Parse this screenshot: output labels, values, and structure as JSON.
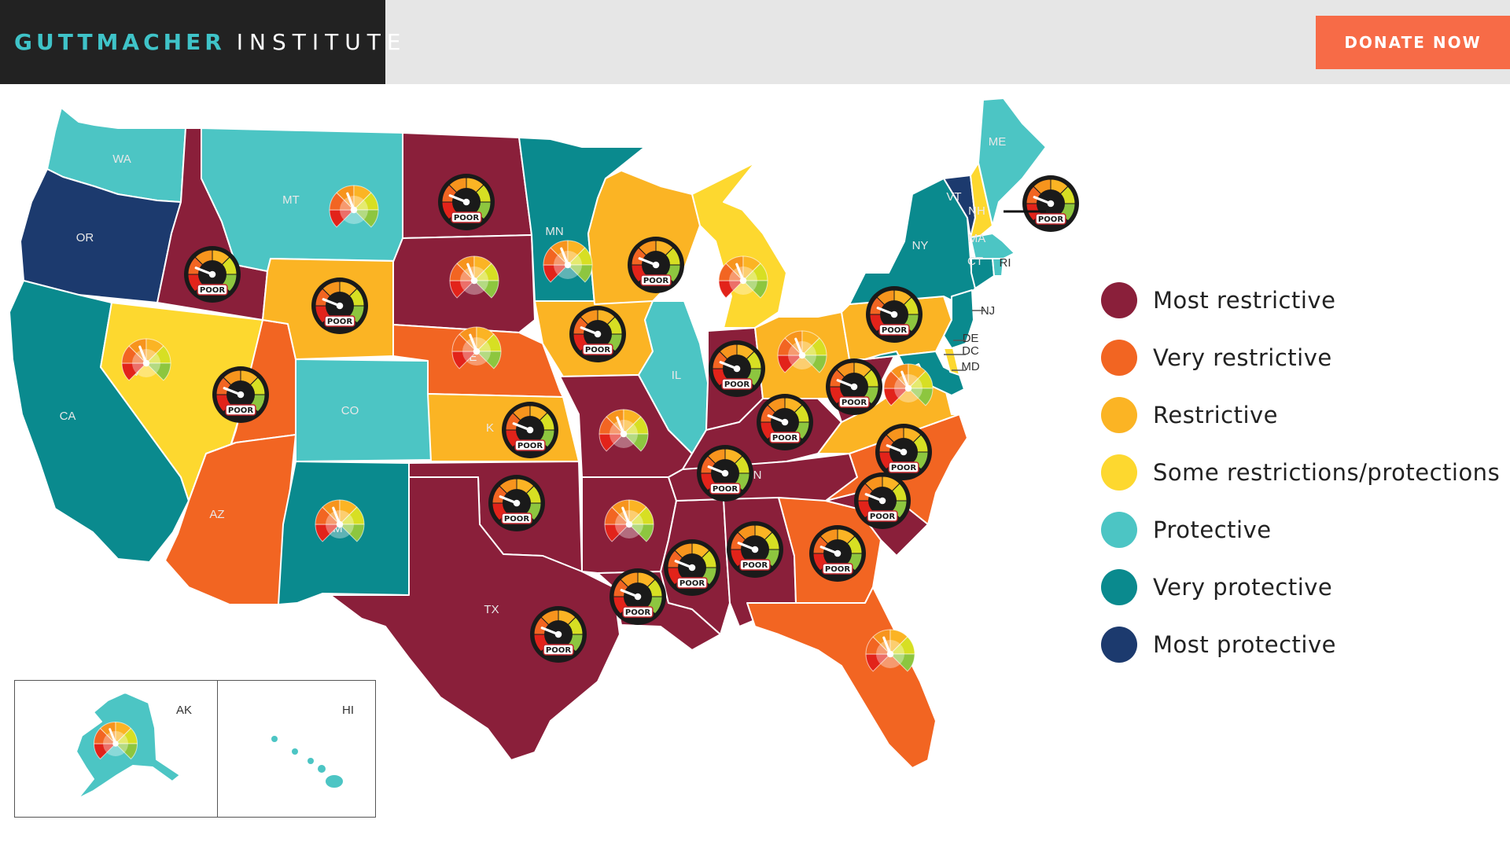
{
  "header": {
    "logo_primary": "GUTTMACHER",
    "logo_secondary": "INSTITUTE",
    "donate_label": "DONATE NOW"
  },
  "colors": {
    "most_restrictive": "#8a1f3a",
    "very_restrictive": "#f26522",
    "restrictive": "#fbb424",
    "some": "#fdd82f",
    "protective": "#4cc5c4",
    "very_protective": "#0a8a8e",
    "most_protective": "#1c3a6e"
  },
  "legend": [
    {
      "label": "Most restrictive",
      "color": "#8a1f3a"
    },
    {
      "label": "Very restrictive",
      "color": "#f26522"
    },
    {
      "label": "Restrictive",
      "color": "#fbb424"
    },
    {
      "label": "Some restrictions/protections",
      "color": "#fdd82f"
    },
    {
      "label": "Protective",
      "color": "#4cc5c4"
    },
    {
      "label": "Very protective",
      "color": "#0a8a8e"
    },
    {
      "label": "Most protective",
      "color": "#1c3a6e"
    }
  ],
  "gauge_badge": "POOR",
  "map": {
    "states": [
      {
        "abbr": "WA",
        "category": "protective",
        "label": "WA"
      },
      {
        "abbr": "OR",
        "category": "most_protective",
        "label": "OR"
      },
      {
        "abbr": "CA",
        "category": "very_protective",
        "label": "CA"
      },
      {
        "abbr": "ID",
        "category": "most_restrictive",
        "label": "",
        "gauge": "poor"
      },
      {
        "abbr": "NV",
        "category": "some",
        "label": "NV",
        "gauge": "meter"
      },
      {
        "abbr": "UT",
        "category": "very_restrictive",
        "label": "",
        "gauge": "poor"
      },
      {
        "abbr": "AZ",
        "category": "very_restrictive",
        "label": "AZ"
      },
      {
        "abbr": "MT",
        "category": "protective",
        "label": "MT",
        "gauge": "meter"
      },
      {
        "abbr": "WY",
        "category": "restrictive",
        "label": "",
        "gauge": "poor"
      },
      {
        "abbr": "CO",
        "category": "protective",
        "label": "CO"
      },
      {
        "abbr": "NM",
        "category": "very_protective",
        "label": "NM",
        "gauge": "meter"
      },
      {
        "abbr": "ND",
        "category": "most_restrictive",
        "label": "",
        "gauge": "poor"
      },
      {
        "abbr": "SD",
        "category": "most_restrictive",
        "label": "",
        "gauge": "meter"
      },
      {
        "abbr": "NE",
        "category": "very_restrictive",
        "label": "NE",
        "gauge": "meter"
      },
      {
        "abbr": "KS",
        "category": "restrictive",
        "label": "K",
        "gauge": "poor"
      },
      {
        "abbr": "OK",
        "category": "most_restrictive",
        "label": "",
        "gauge": "poor"
      },
      {
        "abbr": "TX",
        "category": "most_restrictive",
        "label": "TX",
        "gauge": "poor"
      },
      {
        "abbr": "MN",
        "category": "very_protective",
        "label": "MN",
        "gauge": "meter"
      },
      {
        "abbr": "IA",
        "category": "restrictive",
        "label": "",
        "gauge": "poor"
      },
      {
        "abbr": "MO",
        "category": "most_restrictive",
        "label": "MO",
        "gauge": "meter"
      },
      {
        "abbr": "AR",
        "category": "most_restrictive",
        "label": "AR",
        "gauge": "meter"
      },
      {
        "abbr": "LA",
        "category": "most_restrictive",
        "label": "",
        "gauge": "poor"
      },
      {
        "abbr": "WI",
        "category": "restrictive",
        "label": "",
        "gauge": "poor"
      },
      {
        "abbr": "IL",
        "category": "protective",
        "label": "IL"
      },
      {
        "abbr": "MS",
        "category": "most_restrictive",
        "label": "",
        "gauge": "poor"
      },
      {
        "abbr": "MI",
        "category": "some",
        "label": "MI",
        "gauge": "meter"
      },
      {
        "abbr": "IN",
        "category": "most_restrictive",
        "label": "",
        "gauge": "poor"
      },
      {
        "abbr": "KY",
        "category": "most_restrictive",
        "label": "",
        "gauge": "poor"
      },
      {
        "abbr": "TN",
        "category": "most_restrictive",
        "label": "N",
        "gauge": "poor"
      },
      {
        "abbr": "AL",
        "category": "most_restrictive",
        "label": "",
        "gauge": "poor"
      },
      {
        "abbr": "OH",
        "category": "restrictive",
        "label": "OH",
        "gauge": "meter"
      },
      {
        "abbr": "GA",
        "category": "very_restrictive",
        "label": "",
        "gauge": "poor"
      },
      {
        "abbr": "FL",
        "category": "very_restrictive",
        "label": "",
        "gauge": "meter"
      },
      {
        "abbr": "SC",
        "category": "most_restrictive",
        "label": "",
        "gauge": "poor"
      },
      {
        "abbr": "NC",
        "category": "very_restrictive",
        "label": "",
        "gauge": "poor"
      },
      {
        "abbr": "VA",
        "category": "restrictive",
        "label": "",
        "gauge": "meter"
      },
      {
        "abbr": "WV",
        "category": "most_restrictive",
        "label": "",
        "gauge": "poor"
      },
      {
        "abbr": "PA",
        "category": "restrictive",
        "label": "",
        "gauge": "poor"
      },
      {
        "abbr": "NY",
        "category": "very_protective",
        "label": "NY"
      },
      {
        "abbr": "VT",
        "category": "most_protective",
        "label": "VT"
      },
      {
        "abbr": "NH",
        "category": "some",
        "label": "NH",
        "gauge": "poor"
      },
      {
        "abbr": "ME",
        "category": "protective",
        "label": "ME"
      },
      {
        "abbr": "MA",
        "category": "protective",
        "label": "MA"
      },
      {
        "abbr": "CT",
        "category": "very_protective",
        "label": "CT"
      },
      {
        "abbr": "RI",
        "category": "protective",
        "label": "RI"
      },
      {
        "abbr": "NJ",
        "category": "very_protective",
        "label": "NJ"
      },
      {
        "abbr": "DE",
        "category": "some",
        "label": "DE"
      },
      {
        "abbr": "DC",
        "category": "protective",
        "label": "DC"
      },
      {
        "abbr": "MD",
        "category": "very_protective",
        "label": "MD"
      },
      {
        "abbr": "AK",
        "category": "protective",
        "label": "AK",
        "gauge": "meter"
      },
      {
        "abbr": "HI",
        "category": "protective",
        "label": "HI"
      }
    ]
  }
}
